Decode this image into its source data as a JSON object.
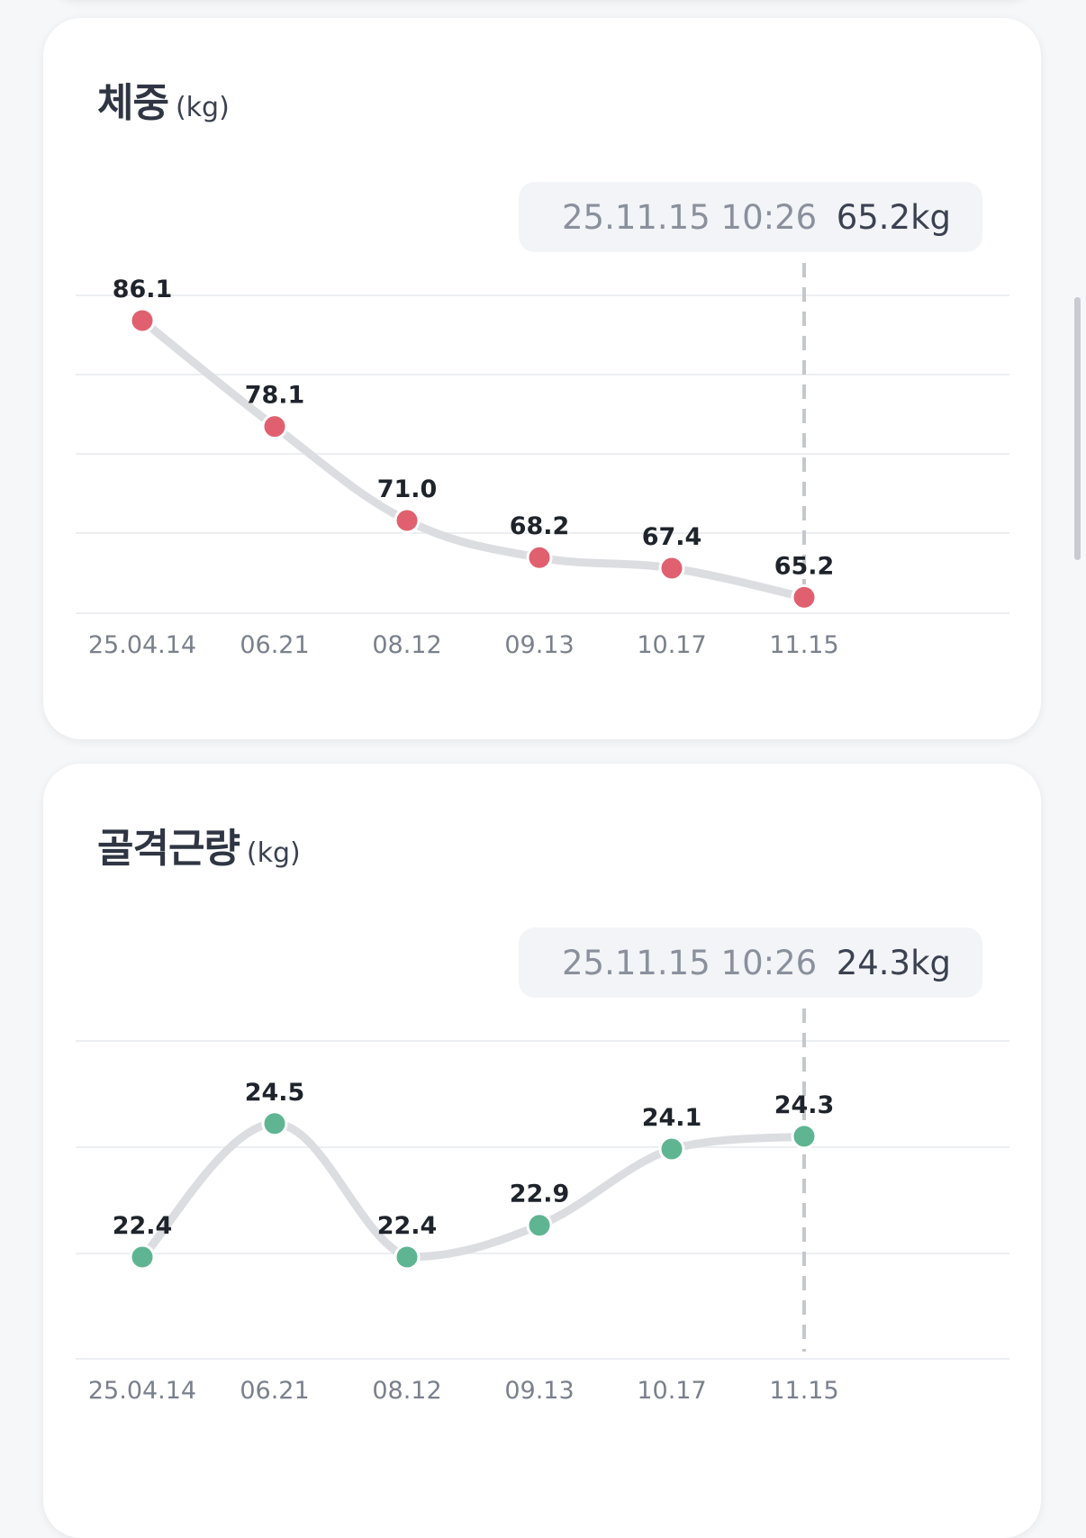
{
  "colors": {
    "weight_marker": "#e0606f",
    "muscle_marker": "#5fb592",
    "line": "#dcdde1",
    "grid": "#eceef1",
    "tooltip_bg": "#f3f4f7",
    "tooltip_date": "#8a909c",
    "tooltip_value": "#3b4150",
    "tick_label": "#7a808c",
    "data_label": "#1f232b"
  },
  "weight_card": {
    "title": "체중",
    "unit": "(kg)",
    "tooltip_date": "25.11.15 10:26",
    "tooltip_value": "65.2kg"
  },
  "muscle_card": {
    "title": "골격근량",
    "unit": "(kg)",
    "tooltip_date": "25.11.15 10:26",
    "tooltip_value": "24.3kg"
  },
  "chart_data": [
    {
      "type": "line",
      "title": "체중",
      "unit": "(kg)",
      "categories": [
        "25.04.14",
        "06.21",
        "08.12",
        "09.13",
        "10.17",
        "11.15"
      ],
      "values": [
        86.1,
        78.1,
        71.0,
        68.2,
        67.4,
        65.2
      ],
      "labels": [
        "86.1",
        "78.1",
        "71.0",
        "68.2",
        "67.4",
        "65.2"
      ],
      "ylim": [
        64,
        88
      ],
      "grid": true,
      "highlighted_index": 5,
      "marker_color": "#e0606f"
    },
    {
      "type": "line",
      "title": "골격근량",
      "unit": "(kg)",
      "categories": [
        "25.04.14",
        "06.21",
        "08.12",
        "09.13",
        "10.17",
        "11.15"
      ],
      "values": [
        22.4,
        24.5,
        22.4,
        22.9,
        24.1,
        24.3
      ],
      "labels": [
        "22.4",
        "24.5",
        "22.4",
        "22.9",
        "24.1",
        "24.3"
      ],
      "ylim": [
        20.8,
        25.8
      ],
      "grid": true,
      "highlighted_index": 5,
      "marker_color": "#5fb592"
    }
  ]
}
